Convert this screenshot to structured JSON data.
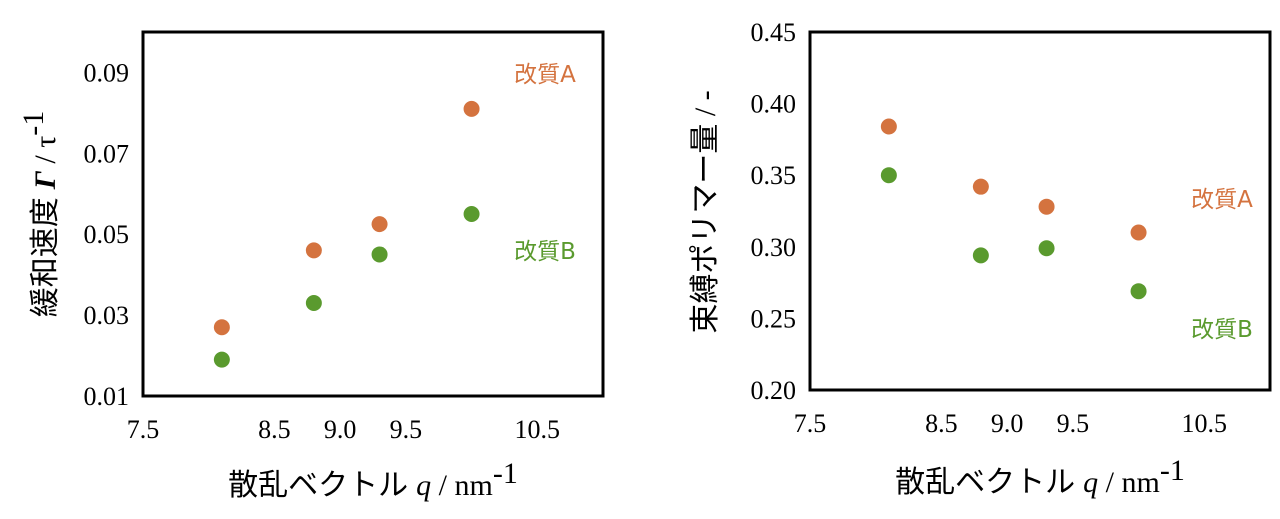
{
  "colors": {
    "series_a": "#d4733f",
    "series_b": "#5a9a2e",
    "frame": "#000000"
  },
  "chart_data": [
    {
      "type": "scatter",
      "xlabel": {
        "jp": "散乱ベクトル",
        "var": "q",
        "unit_prefix": " / nm",
        "unit_sup": "-1"
      },
      "ylabel": {
        "jp": "緩和速度",
        "var": "Γ",
        "unit_prefix": " / τ",
        "unit_sup": "-1"
      },
      "xlim": [
        7.5,
        11.0
      ],
      "ylim": [
        0.01,
        0.1
      ],
      "xticks": [
        "7.5",
        "8.5",
        "9.0",
        "9.5",
        "10.5"
      ],
      "yticks": [
        "0.01",
        "0.03",
        "0.05",
        "0.07",
        "0.09"
      ],
      "series": [
        {
          "name": "改質A",
          "color": "#d4733f",
          "x": [
            8.1,
            8.8,
            9.3,
            10.0
          ],
          "y": [
            0.027,
            0.046,
            0.0525,
            0.081
          ]
        },
        {
          "name": "改質B",
          "color": "#5a9a2e",
          "x": [
            8.1,
            8.8,
            9.3,
            10.0
          ],
          "y": [
            0.019,
            0.033,
            0.045,
            0.055
          ]
        }
      ]
    },
    {
      "type": "scatter",
      "xlabel": {
        "jp": "散乱ベクトル",
        "var": "q",
        "unit_prefix": " / nm",
        "unit_sup": "-1"
      },
      "ylabel": {
        "jp": "束縛ポリマー量",
        "unit": " / -"
      },
      "xlim": [
        7.5,
        11.0
      ],
      "ylim": [
        0.2,
        0.45
      ],
      "xticks": [
        "7.5",
        "8.5",
        "9.0",
        "9.5",
        "10.5"
      ],
      "yticks": [
        "0.20",
        "0.25",
        "0.30",
        "0.35",
        "0.40",
        "0.45"
      ],
      "series": [
        {
          "name": "改質A",
          "color": "#d4733f",
          "x": [
            8.1,
            8.8,
            9.3,
            10.0
          ],
          "y": [
            0.384,
            0.342,
            0.328,
            0.31
          ]
        },
        {
          "name": "改質B",
          "color": "#5a9a2e",
          "x": [
            8.1,
            8.8,
            9.3,
            10.0
          ],
          "y": [
            0.35,
            0.294,
            0.299,
            0.269
          ]
        }
      ]
    }
  ]
}
